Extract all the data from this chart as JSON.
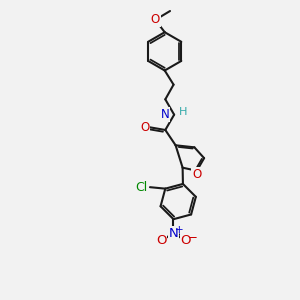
{
  "bg_color": "#f2f2f2",
  "bond_color": "#1a1a1a",
  "bond_width": 1.5,
  "atom_colors": {
    "O": "#cc0000",
    "N": "#0000cc",
    "Cl": "#008800",
    "H": "#33aaaa"
  },
  "font_size": 8.5
}
